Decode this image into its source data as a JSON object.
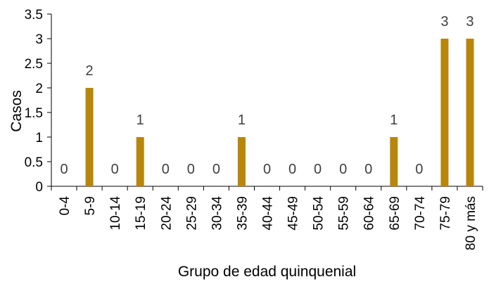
{
  "chart_data": {
    "type": "bar",
    "title": "",
    "xlabel": "Grupo de edad quinquenial",
    "ylabel": "Casos",
    "categories": [
      "0-4",
      "5-9",
      "10-14",
      "15-19",
      "20-24",
      "25-29",
      "30-34",
      "35-39",
      "40-44",
      "45-49",
      "50-54",
      "55-59",
      "60-64",
      "65-69",
      "70-74",
      "75-79",
      "80 y más"
    ],
    "values": [
      0,
      2,
      0,
      1,
      0,
      0,
      0,
      1,
      0,
      0,
      0,
      0,
      0,
      1,
      0,
      3,
      3
    ],
    "ylim": [
      0,
      3.5
    ],
    "yticks": [
      "0",
      "0.5",
      "1",
      "1.5",
      "2",
      "2.5",
      "3",
      "3.5"
    ],
    "grid": false,
    "bar_color": "#B8860B"
  }
}
